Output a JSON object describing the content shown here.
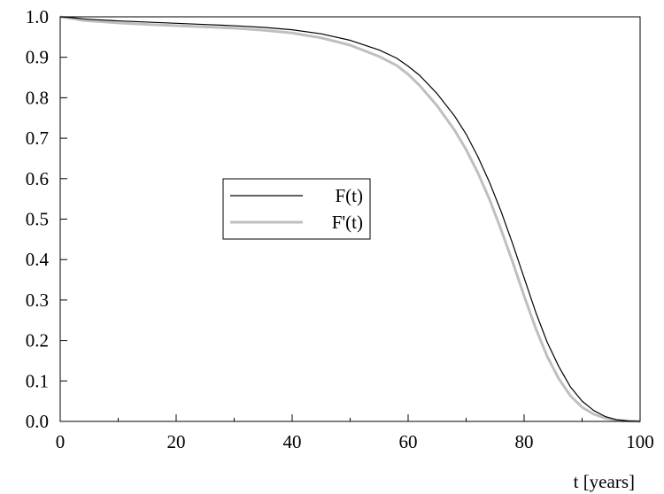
{
  "chart_data": {
    "type": "line",
    "title": "",
    "xlabel": "t [years]",
    "ylabel": "",
    "xlim": [
      0,
      100
    ],
    "ylim": [
      0,
      1
    ],
    "x_ticks": [
      "0",
      "20",
      "40",
      "60",
      "80",
      "100"
    ],
    "y_ticks": [
      "0.0",
      "0.1",
      "0.2",
      "0.3",
      "0.4",
      "0.5",
      "0.6",
      "0.7",
      "0.8",
      "0.9",
      "1.0"
    ],
    "grid": false,
    "legend_position": "center-left",
    "series": [
      {
        "name": "F(t)",
        "color": "#000000",
        "x": [
          0,
          2,
          4,
          6,
          10,
          15,
          20,
          25,
          30,
          35,
          40,
          45,
          50,
          55,
          58,
          60,
          62,
          65,
          68,
          70,
          72,
          74,
          76,
          78,
          80,
          82,
          84,
          86,
          88,
          90,
          92,
          94,
          96,
          98,
          100
        ],
        "values": [
          1.0,
          0.998,
          0.995,
          0.993,
          0.99,
          0.987,
          0.984,
          0.981,
          0.978,
          0.974,
          0.968,
          0.958,
          0.942,
          0.918,
          0.898,
          0.878,
          0.855,
          0.81,
          0.755,
          0.71,
          0.655,
          0.592,
          0.52,
          0.44,
          0.355,
          0.27,
          0.195,
          0.135,
          0.085,
          0.05,
          0.027,
          0.012,
          0.004,
          0.001,
          0.0
        ]
      },
      {
        "name": "F'(t)",
        "color": "#bfbfbf",
        "x": [
          0,
          2,
          4,
          6,
          10,
          15,
          20,
          25,
          30,
          35,
          40,
          45,
          50,
          55,
          58,
          60,
          62,
          65,
          68,
          70,
          72,
          74,
          76,
          78,
          80,
          82,
          84,
          86,
          88,
          90,
          92,
          94,
          96,
          98,
          100
        ],
        "values": [
          1.0,
          0.996,
          0.991,
          0.989,
          0.985,
          0.981,
          0.978,
          0.975,
          0.972,
          0.967,
          0.96,
          0.948,
          0.93,
          0.902,
          0.88,
          0.858,
          0.83,
          0.78,
          0.72,
          0.672,
          0.615,
          0.55,
          0.475,
          0.395,
          0.31,
          0.23,
          0.16,
          0.105,
          0.063,
          0.035,
          0.018,
          0.008,
          0.003,
          0.001,
          0.0
        ]
      }
    ]
  }
}
